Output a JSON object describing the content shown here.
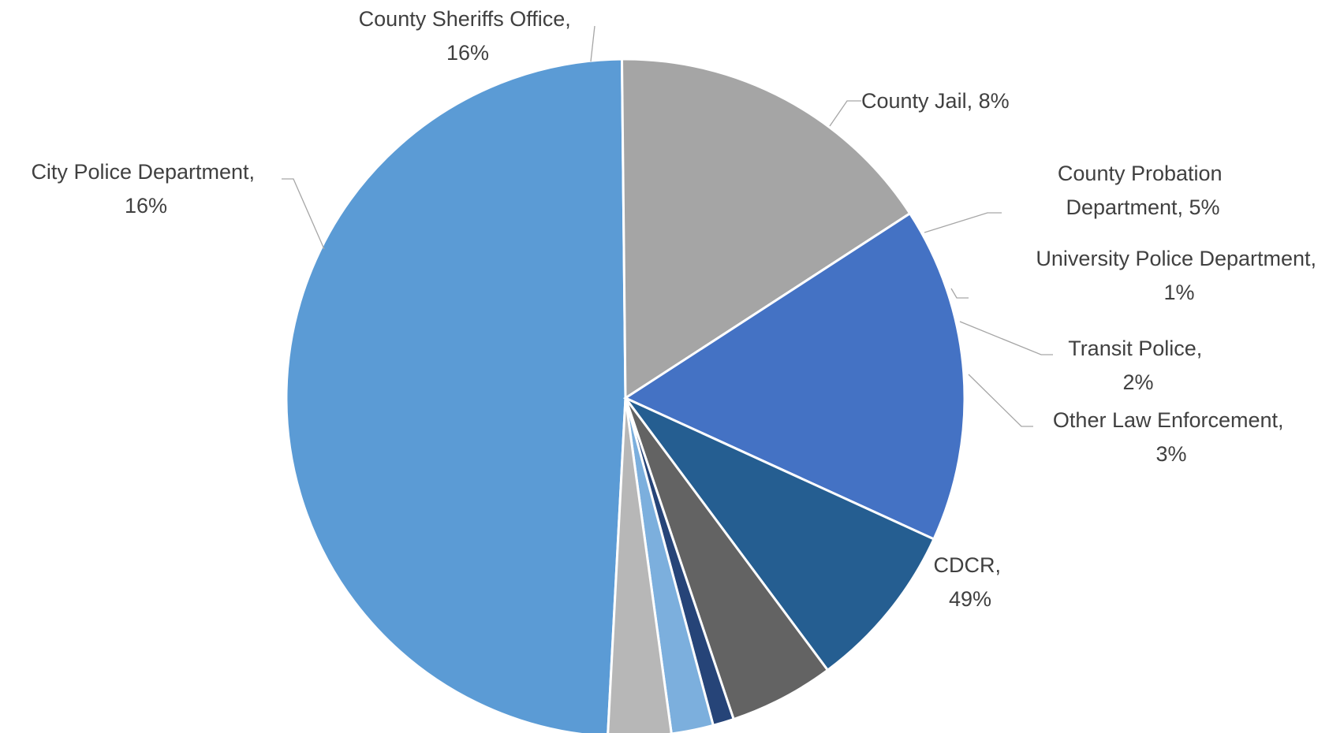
{
  "chart_data": {
    "type": "pie",
    "title": "",
    "legend": "none",
    "slices": [
      {
        "label": "CDCR,",
        "percent_label": "49%",
        "value": 49,
        "color": "#5b9bd5"
      },
      {
        "label": "City Police Department,",
        "percent_label": "16%",
        "value": 16,
        "color": "#a5a5a5"
      },
      {
        "label": "County Sheriffs Office,",
        "percent_label": "16%",
        "value": 16,
        "color": "#4472c4"
      },
      {
        "label": "County Jail, 8%",
        "percent_label": "",
        "value": 8,
        "color": "#255e91"
      },
      {
        "label": "County Probation",
        "percent_label": "Department, 5%",
        "value": 5,
        "color": "#636363"
      },
      {
        "label": "University Police Department,",
        "percent_label": "1%",
        "value": 1,
        "color": "#264478"
      },
      {
        "label": "Transit Police,",
        "percent_label": "2%",
        "value": 2,
        "color": "#7cafdd"
      },
      {
        "label": "Other Law Enforcement,",
        "percent_label": "3%",
        "value": 3,
        "color": "#b7b7b7"
      }
    ]
  }
}
